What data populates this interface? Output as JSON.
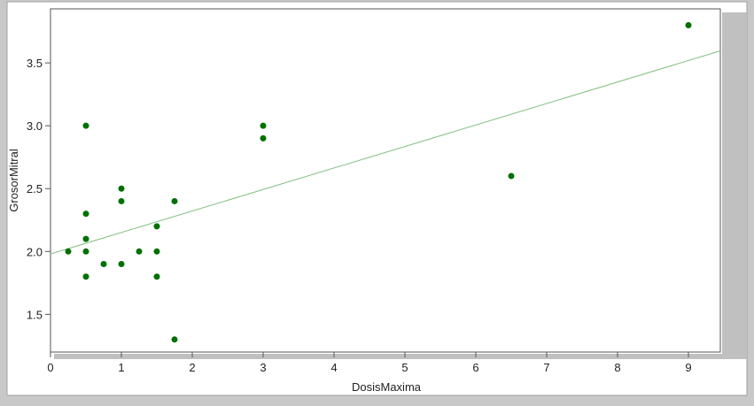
{
  "chart_data": {
    "type": "scatter",
    "x_label": "DosisMaxima",
    "y_label": "GrosorMitral",
    "x": [
      0.25,
      0.5,
      0.5,
      0.5,
      0.5,
      0.5,
      0.75,
      1.0,
      1.0,
      1.0,
      1.25,
      1.5,
      1.5,
      1.5,
      1.75,
      1.75,
      3,
      3,
      6.5,
      9
    ],
    "values": [
      2.0,
      3.0,
      2.3,
      2.1,
      2.0,
      1.8,
      1.9,
      2.5,
      2.4,
      1.9,
      2.0,
      2.2,
      2.0,
      1.8,
      2.4,
      1.3,
      3.0,
      2.9,
      2.6,
      3.8
    ],
    "color": "#007000",
    "fit": {
      "intercept": 1.98,
      "slope": 0.171,
      "color": "#80c080"
    },
    "xlim": [
      0,
      9.45
    ],
    "ylim": [
      1.2,
      3.93
    ],
    "xticks": [
      0,
      1,
      2,
      3,
      4,
      5,
      6,
      7,
      8,
      9
    ],
    "yticks": [
      {
        "value": 1.5,
        "label": "1.5"
      },
      {
        "value": 2.0,
        "label": "2.0"
      },
      {
        "value": 2.5,
        "label": "2.5"
      },
      {
        "value": 3.0,
        "label": "3.0"
      },
      {
        "value": 3.5,
        "label": "3.5"
      }
    ]
  }
}
